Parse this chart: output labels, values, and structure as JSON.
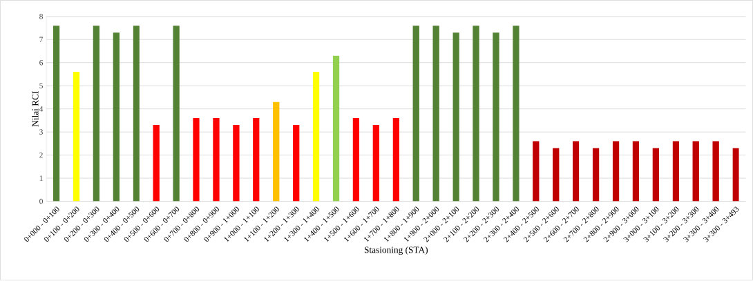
{
  "chart_data": {
    "type": "bar",
    "xlabel": "Stasioning (STA)",
    "ylabel": "Nilai RCI",
    "categories": [
      "0+000 - 0+100",
      "0+100 - 0+200",
      "0+200 - 0+300",
      "0+300 - 0+400",
      "0+400 - 0+500",
      "0+500 - 0+600",
      "0+600 - 0+700",
      "0+700 - 0+800",
      "0+800 - 0+900",
      "0+900 - 1+000",
      "1+000 - 1+100",
      "1+100 - 1+200",
      "1+200 - 1+300",
      "1+300 - 1+400",
      "1+400 - 1+500",
      "1+500 - 1+600",
      "1+600 - 1+700",
      "1+700 - 1+800",
      "1+800 - 1+900",
      "1+900 - 2+000",
      "2+000 - 2+100",
      "2+100 - 2+200",
      "2+200 - 2+300",
      "2+300 - 2+400",
      "2+400 - 2+500",
      "2+500 - 2+600",
      "2+600 - 2+700",
      "2+700 - 2+800",
      "2+800 - 2+900",
      "2+900 - 3+000",
      "3+000 - 3+100",
      "3+100 - 3+200",
      "3+200 - 3+300",
      "3+300 - 3+400",
      "3+300 - 3+493"
    ],
    "values": [
      7.6,
      5.6,
      7.6,
      7.3,
      7.6,
      3.3,
      7.6,
      3.6,
      3.6,
      3.3,
      3.6,
      4.3,
      3.3,
      5.6,
      6.3,
      3.6,
      3.3,
      3.6,
      7.6,
      7.6,
      7.3,
      7.6,
      7.3,
      7.6,
      2.6,
      2.3,
      2.6,
      2.3,
      2.6,
      2.6,
      2.3,
      2.6,
      2.6,
      2.6,
      2.3
    ],
    "colors": [
      "#548235",
      "#ffff00",
      "#548235",
      "#548235",
      "#548235",
      "#ff0000",
      "#548235",
      "#ff0000",
      "#ff0000",
      "#ff0000",
      "#ff0000",
      "#ffc000",
      "#ff0000",
      "#ffff00",
      "#92d050",
      "#ff0000",
      "#ff0000",
      "#ff0000",
      "#548235",
      "#548235",
      "#548235",
      "#548235",
      "#548235",
      "#548235",
      "#c00000",
      "#c00000",
      "#c00000",
      "#c00000",
      "#c00000",
      "#c00000",
      "#c00000",
      "#c00000",
      "#c00000",
      "#c00000",
      "#c00000"
    ],
    "ylim": [
      0,
      8
    ],
    "yticks": [
      0,
      1,
      2,
      3,
      4,
      5,
      6,
      7,
      8
    ],
    "grid": "y"
  }
}
